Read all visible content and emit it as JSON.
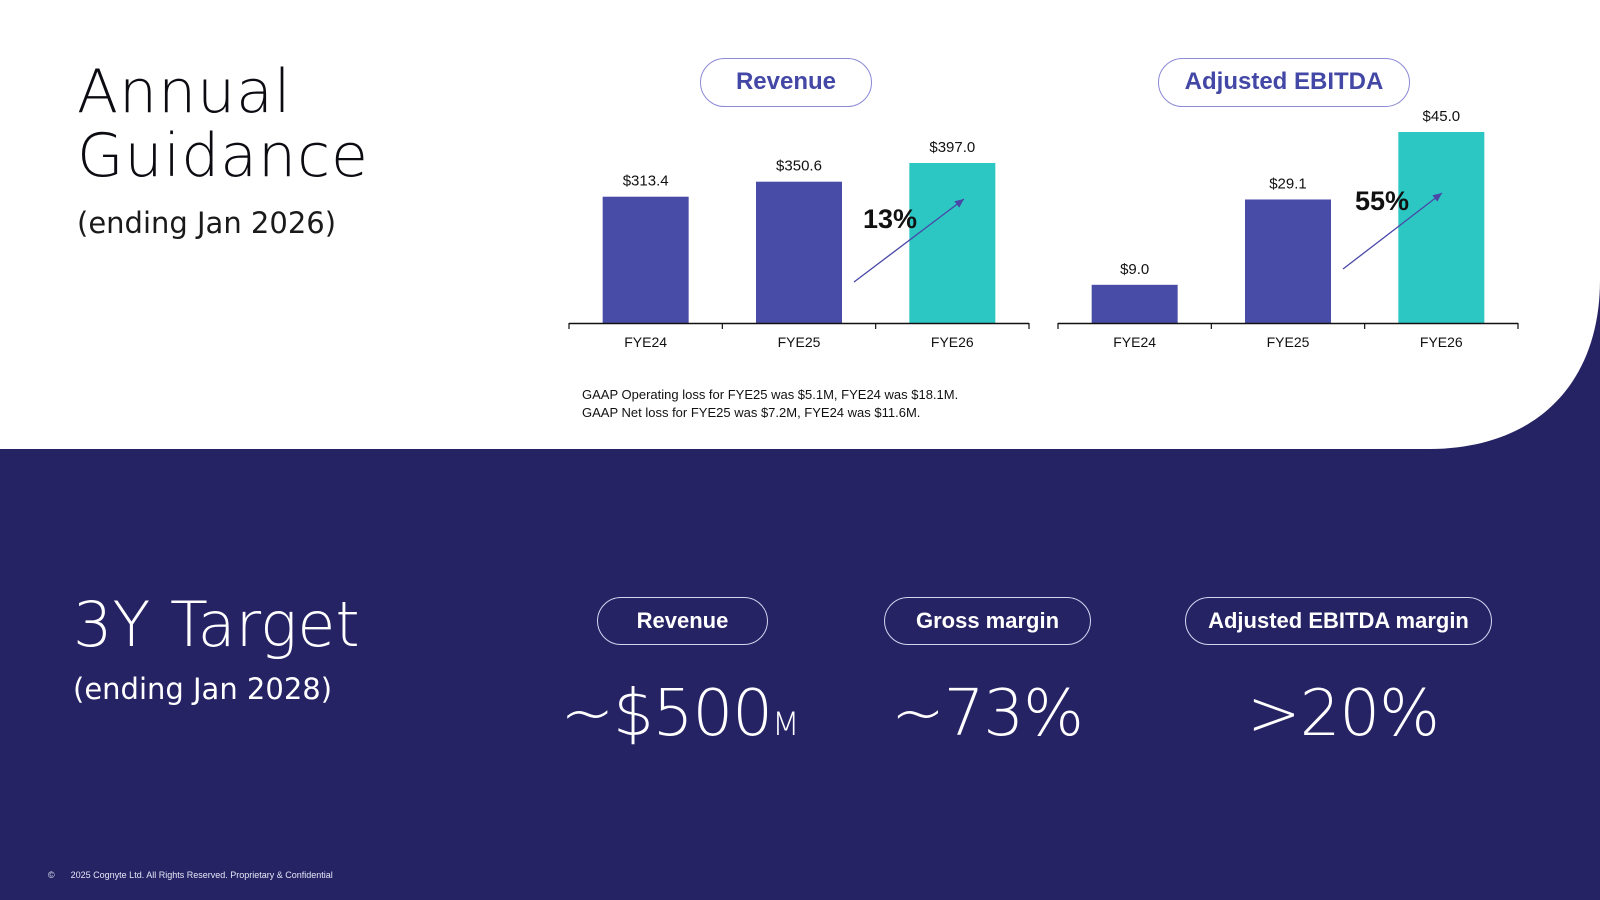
{
  "annual": {
    "title_line1": "Annual",
    "title_line2": "Guidance",
    "subtitle": "(ending Jan 2026)"
  },
  "notes": {
    "line1": "GAAP Operating loss for FYE25 was $5.1M, FYE24 was $18.1M.",
    "line2": "GAAP Net loss for FYE25 was $7.2M,  FYE24 was $11.6M."
  },
  "target": {
    "title": "3Y Target",
    "subtitle": "(ending Jan 2028)",
    "kpis": [
      {
        "label": "Revenue",
        "value": "~$500",
        "unit": "M"
      },
      {
        "label": "Gross margin",
        "value": "~73%",
        "unit": ""
      },
      {
        "label": "Adjusted EBITDA margin",
        "value": ">20%",
        "unit": ""
      }
    ]
  },
  "footer": {
    "copyright_symbol": "©",
    "text": "2025 Cognyte Ltd. All Rights Reserved. Proprietary & Confidential"
  },
  "colors": {
    "navy": "#262365",
    "bar_purple": "#484ca6",
    "bar_teal": "#2cc7c2",
    "pill_text": "#4347a5"
  },
  "chart_data": [
    {
      "type": "bar",
      "title": "Revenue",
      "categories": [
        "FYE24",
        "FYE25",
        "FYE26"
      ],
      "values": [
        313.4,
        350.6,
        397.0
      ],
      "value_labels": [
        "$313.4",
        "$350.6",
        "$397.0"
      ],
      "growth_label": "13%",
      "highlight_index": 2,
      "ylim": [
        0,
        397.0
      ],
      "grid": false
    },
    {
      "type": "bar",
      "title": "Adjusted EBITDA",
      "categories": [
        "FYE24",
        "FYE25",
        "FYE26"
      ],
      "values": [
        9.0,
        29.1,
        45.0
      ],
      "value_labels": [
        "$9.0",
        "$29.1",
        "$45.0"
      ],
      "growth_label": "55%",
      "highlight_index": 2,
      "ylim": [
        0,
        45.0
      ],
      "grid": false
    }
  ]
}
